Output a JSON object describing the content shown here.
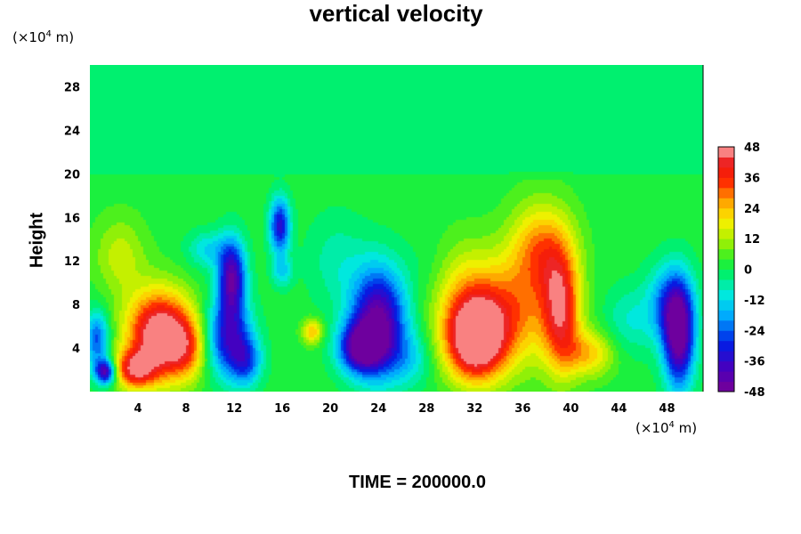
{
  "chart_data": {
    "type": "heatmap",
    "title": "vertical velocity",
    "ylabel": "Height",
    "xlabel": "",
    "x_unit": {
      "prefix": "(×10",
      "exp": "4",
      "suffix": " m)"
    },
    "y_unit": {
      "prefix": "(×10",
      "exp": "4",
      "suffix": " m)"
    },
    "xlim": [
      0,
      51
    ],
    "ylim": [
      0,
      30
    ],
    "x_ticks": [
      4,
      8,
      12,
      16,
      20,
      24,
      28,
      32,
      36,
      40,
      44,
      48
    ],
    "y_ticks": [
      4,
      8,
      12,
      16,
      20,
      24,
      28
    ],
    "colorbar": {
      "range": [
        -48,
        48
      ],
      "ticks": [
        48,
        36,
        24,
        12,
        0,
        -12,
        -24,
        -36,
        -48
      ],
      "levels": 24
    },
    "features": [
      {
        "x": 5.8,
        "y": 5.2,
        "sx": 1.9,
        "sy": 2.8,
        "value": 52
      },
      {
        "x": 3.7,
        "y": 2.0,
        "sx": 1.2,
        "sy": 1.2,
        "value": 34
      },
      {
        "x": 8.0,
        "y": 4.0,
        "sx": 1.2,
        "sy": 2.0,
        "value": 20
      },
      {
        "x": 1.3,
        "y": 1.8,
        "sx": 0.6,
        "sy": 0.8,
        "value": -44
      },
      {
        "x": 0.6,
        "y": 4.8,
        "sx": 0.7,
        "sy": 1.8,
        "value": -28
      },
      {
        "x": 11.8,
        "y": 10.5,
        "sx": 0.8,
        "sy": 2.4,
        "value": -44
      },
      {
        "x": 11.5,
        "y": 5.0,
        "sx": 1.3,
        "sy": 2.5,
        "value": -36
      },
      {
        "x": 13.0,
        "y": 2.8,
        "sx": 0.9,
        "sy": 1.6,
        "value": -24
      },
      {
        "x": 15.8,
        "y": 15.2,
        "sx": 0.6,
        "sy": 1.8,
        "value": -36
      },
      {
        "x": 16.0,
        "y": 11.0,
        "sx": 0.6,
        "sy": 1.0,
        "value": -14
      },
      {
        "x": 9.8,
        "y": 13.0,
        "sx": 1.2,
        "sy": 1.2,
        "value": -14
      },
      {
        "x": 18.5,
        "y": 5.5,
        "sx": 0.6,
        "sy": 0.8,
        "value": 22
      },
      {
        "x": 24.0,
        "y": 6.5,
        "sx": 1.6,
        "sy": 3.4,
        "value": -48
      },
      {
        "x": 22.5,
        "y": 4.0,
        "sx": 1.3,
        "sy": 1.6,
        "value": -40
      },
      {
        "x": 26.5,
        "y": 3.0,
        "sx": 1.3,
        "sy": 1.8,
        "value": -12
      },
      {
        "x": 32.0,
        "y": 4.8,
        "sx": 1.7,
        "sy": 2.6,
        "value": 52
      },
      {
        "x": 34.5,
        "y": 7.0,
        "sx": 2.8,
        "sy": 3.5,
        "value": 26
      },
      {
        "x": 37.5,
        "y": 13.0,
        "sx": 1.8,
        "sy": 3.0,
        "value": 26
      },
      {
        "x": 39.2,
        "y": 7.5,
        "sx": 1.1,
        "sy": 3.8,
        "value": 36
      },
      {
        "x": 41.5,
        "y": 3.5,
        "sx": 1.5,
        "sy": 1.5,
        "value": 20
      },
      {
        "x": 30.5,
        "y": 10.0,
        "sx": 2.2,
        "sy": 3.0,
        "value": 12
      },
      {
        "x": 49.0,
        "y": 5.0,
        "sx": 0.9,
        "sy": 3.3,
        "value": -48
      },
      {
        "x": 48.2,
        "y": 8.0,
        "sx": 1.3,
        "sy": 2.5,
        "value": -24
      },
      {
        "x": 44.8,
        "y": 6.5,
        "sx": 1.4,
        "sy": 2.2,
        "value": -10
      },
      {
        "x": 2.5,
        "y": 12.5,
        "sx": 1.5,
        "sy": 2.5,
        "value": 12
      },
      {
        "x": 20.5,
        "y": 12.0,
        "sx": 1.7,
        "sy": 3.0,
        "value": -8
      },
      {
        "x": 28.5,
        "y": 11.0,
        "sx": 1.6,
        "sy": 2.5,
        "value": -6
      }
    ],
    "upper_layer": {
      "top": 19.5,
      "value": -2
    }
  },
  "footer": {
    "time_label": "TIME = 200000.0"
  }
}
